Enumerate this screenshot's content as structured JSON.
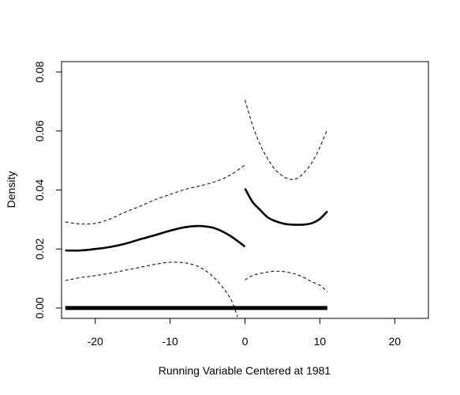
{
  "chart_data": {
    "type": "line",
    "title": "",
    "xlabel": "Running Variable Centered at 1981",
    "ylabel": "Density",
    "xlim": [
      -24.5,
      24.5
    ],
    "ylim": [
      -0.0035,
      0.0835
    ],
    "xticks": [
      -20,
      -10,
      0,
      10,
      20
    ],
    "xtick_labels": [
      "-20",
      "-10",
      "0",
      "10",
      "20"
    ],
    "yticks": [
      0.0,
      0.02,
      0.04,
      0.06,
      0.08
    ],
    "ytick_labels": [
      "0.00",
      "0.02",
      "0.04",
      "0.06",
      "0.08"
    ],
    "grid": false,
    "legend": "none",
    "series": [
      {
        "role": "estimate-left",
        "style": "solid",
        "x": [
          -24,
          -22,
          -20,
          -18,
          -16,
          -14,
          -12,
          -10,
          -8,
          -6,
          -4,
          -2,
          0
        ],
        "y": [
          0.0195,
          0.0195,
          0.02,
          0.0207,
          0.0218,
          0.0233,
          0.0247,
          0.0262,
          0.0274,
          0.0278,
          0.027,
          0.0245,
          0.0208
        ]
      },
      {
        "role": "upper-ci-left",
        "style": "dashed",
        "x": [
          -24,
          -22,
          -20,
          -18,
          -16,
          -14,
          -12,
          -10,
          -8,
          -6,
          -4,
          -2,
          0
        ],
        "y": [
          0.0292,
          0.0285,
          0.0287,
          0.0302,
          0.0325,
          0.0345,
          0.0367,
          0.0385,
          0.0402,
          0.0414,
          0.0428,
          0.045,
          0.0485
        ]
      },
      {
        "role": "lower-ci-left",
        "style": "dashed",
        "x": [
          -24,
          -22,
          -20,
          -18,
          -16,
          -14,
          -12,
          -10,
          -8,
          -6,
          -4,
          -2,
          -1
        ],
        "y": [
          0.0093,
          0.0103,
          0.011,
          0.0118,
          0.0128,
          0.0138,
          0.0148,
          0.0155,
          0.0153,
          0.0138,
          0.01,
          0.0035,
          -0.003
        ]
      },
      {
        "role": "estimate-right",
        "style": "solid",
        "x": [
          0,
          1,
          2,
          3,
          4,
          5,
          6,
          7,
          8,
          9,
          10,
          11
        ],
        "y": [
          0.0405,
          0.036,
          0.0333,
          0.0308,
          0.0295,
          0.0287,
          0.0283,
          0.0282,
          0.0283,
          0.0288,
          0.0302,
          0.0328
        ]
      },
      {
        "role": "upper-ci-right",
        "style": "dashed",
        "x": [
          0,
          1,
          2,
          3,
          4,
          5,
          6,
          7,
          8,
          9,
          10,
          11
        ],
        "y": [
          0.0705,
          0.062,
          0.0555,
          0.0507,
          0.047,
          0.0448,
          0.0436,
          0.044,
          0.0462,
          0.0495,
          0.0545,
          0.0605
        ]
      },
      {
        "role": "lower-ci-right",
        "style": "dashed",
        "x": [
          0,
          1,
          2,
          3,
          4,
          5,
          6,
          7,
          8,
          9,
          10,
          11
        ],
        "y": [
          0.0095,
          0.011,
          0.0117,
          0.0122,
          0.0125,
          0.0124,
          0.012,
          0.0113,
          0.0102,
          0.0088,
          0.0077,
          0.0055
        ]
      },
      {
        "role": "baseline-zero",
        "style": "thick",
        "x": [
          -24,
          11
        ],
        "y": [
          0,
          0
        ]
      }
    ]
  }
}
